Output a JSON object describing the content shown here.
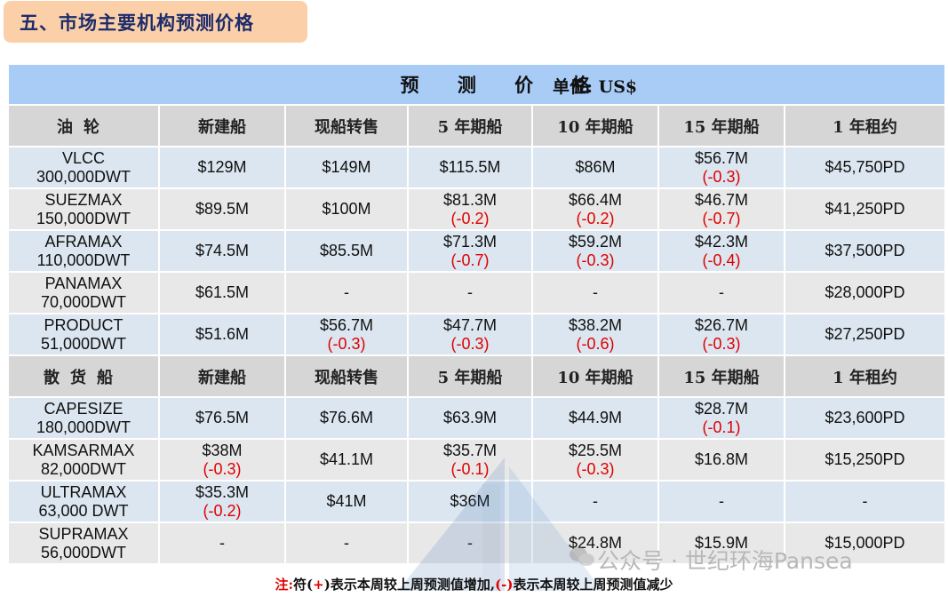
{
  "section_title": "五、市场主要机构预测价格",
  "table": {
    "title": "预 测 价 格",
    "unit": "单位: US$",
    "tanker_header": [
      "油轮",
      "新建船",
      "现船转售",
      "5 年期船",
      "10 年期船",
      "15 年期船",
      "1 年租约"
    ],
    "tanker_rows": [
      {
        "name": [
          "VLCC",
          "300,000DWT"
        ],
        "cells": [
          [
            "$129M",
            ""
          ],
          [
            "$149M",
            ""
          ],
          [
            "$115.5M",
            ""
          ],
          [
            "$86M",
            ""
          ],
          [
            "$56.7M",
            "(-0.3)"
          ],
          [
            "$45,750PD",
            ""
          ]
        ]
      },
      {
        "name": [
          "SUEZMAX",
          "150,000DWT"
        ],
        "cells": [
          [
            "$89.5M",
            ""
          ],
          [
            "$100M",
            ""
          ],
          [
            "$81.3M",
            "(-0.2)"
          ],
          [
            "$66.4M",
            "(-0.2)"
          ],
          [
            "$46.7M",
            "(-0.7)"
          ],
          [
            "$41,250PD",
            ""
          ]
        ]
      },
      {
        "name": [
          "AFRAMAX",
          "110,000DWT"
        ],
        "cells": [
          [
            "$74.5M",
            ""
          ],
          [
            "$85.5M",
            ""
          ],
          [
            "$71.3M",
            "(-0.7)"
          ],
          [
            "$59.2M",
            "(-0.3)"
          ],
          [
            "$42.3M",
            "(-0.4)"
          ],
          [
            "$37,500PD",
            ""
          ]
        ]
      },
      {
        "name": [
          "PANAMAX",
          "70,000DWT"
        ],
        "cells": [
          [
            "$61.5M",
            ""
          ],
          [
            "-",
            ""
          ],
          [
            "-",
            ""
          ],
          [
            "-",
            ""
          ],
          [
            "-",
            ""
          ],
          [
            "$28,000PD",
            ""
          ]
        ]
      },
      {
        "name": [
          "PRODUCT",
          "51,000DWT"
        ],
        "cells": [
          [
            "$51.6M",
            ""
          ],
          [
            "$56.7M",
            "(-0.3)"
          ],
          [
            "$47.7M",
            "(-0.3)"
          ],
          [
            "$38.2M",
            "(-0.6)"
          ],
          [
            "$26.7M",
            "(-0.3)"
          ],
          [
            "$27,250PD",
            ""
          ]
        ]
      }
    ],
    "bulk_header": [
      "散货船",
      "新建船",
      "现船转售",
      "5 年期船",
      "10 年期船",
      "15 年期船",
      "1 年租约"
    ],
    "bulk_rows": [
      {
        "name": [
          "CAPESIZE",
          "180,000DWT"
        ],
        "cells": [
          [
            "$76.5M",
            ""
          ],
          [
            "$76.6M",
            ""
          ],
          [
            "$63.9M",
            ""
          ],
          [
            "$44.9M",
            ""
          ],
          [
            "$28.7M",
            "(-0.1)"
          ],
          [
            "$23,600PD",
            ""
          ]
        ]
      },
      {
        "name": [
          "KAMSARMAX",
          "82,000DWT"
        ],
        "cells": [
          [
            "$38M",
            "(-0.3)"
          ],
          [
            "$41.1M",
            ""
          ],
          [
            "$35.7M",
            "(-0.1)"
          ],
          [
            "$25.5M",
            "(-0.3)"
          ],
          [
            "$16.8M",
            ""
          ],
          [
            "$15,250PD",
            ""
          ]
        ]
      },
      {
        "name": [
          "ULTRAMAX",
          "63,000 DWT"
        ],
        "cells": [
          [
            "$35.3M",
            "(-0.2)"
          ],
          [
            "$41M",
            ""
          ],
          [
            "$36M",
            ""
          ],
          [
            "-",
            ""
          ],
          [
            "-",
            ""
          ],
          [
            "-",
            ""
          ]
        ]
      },
      {
        "name": [
          "SUPRAMAX",
          "56,000DWT"
        ],
        "cells": [
          [
            "-",
            ""
          ],
          [
            "-",
            ""
          ],
          [
            "-",
            ""
          ],
          [
            "$24.8M",
            ""
          ],
          [
            "$15.9M",
            ""
          ],
          [
            "$15,000PD",
            ""
          ]
        ]
      }
    ]
  },
  "footer": {
    "prefix": "注:",
    "part1": "符(",
    "plus": "+",
    "part2": ")表示本周较上周预测值增加,",
    "minus": "(-)",
    "part3": "表示本周较上周预测值减少"
  },
  "watermark": {
    "text": "公众号 · 世纪环海Pansea",
    "icon": "wechat-icon"
  }
}
